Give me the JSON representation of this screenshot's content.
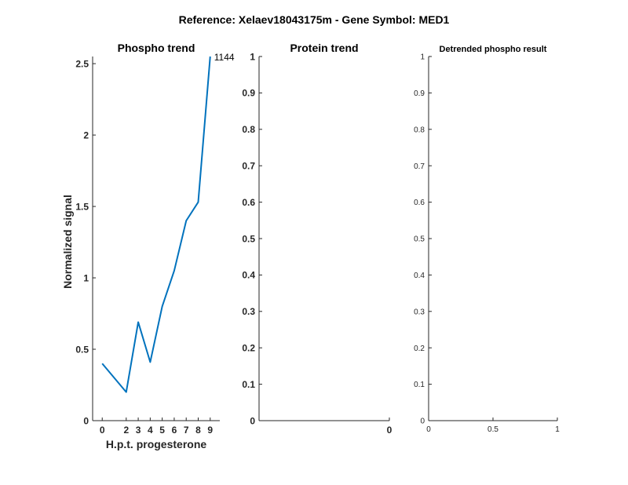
{
  "figure": {
    "title": "Reference:  Xelaev18043175m - Gene Symbol:  MED1"
  },
  "chart_data": [
    {
      "type": "line",
      "title": "Phospho trend",
      "xlabel": "H.p.t. progesterone",
      "ylabel": "Normalized signal",
      "x": [
        0,
        2,
        3,
        4,
        5,
        6,
        7,
        8,
        9
      ],
      "x_tick_labels": [
        "0",
        "2",
        "3",
        "4",
        "5",
        "6",
        "7",
        "8",
        "9"
      ],
      "xlim": [
        -0.8,
        9.8
      ],
      "ylim": [
        0,
        2.55
      ],
      "y_ticks": [
        0,
        0.5,
        1,
        1.5,
        2,
        2.5
      ],
      "y_tick_labels": [
        "0",
        "0.5",
        "1",
        "1.5",
        "2",
        "2.5"
      ],
      "series": [
        {
          "label": "1144",
          "color": "#0072bd",
          "values": [
            0.4,
            0.2,
            0.69,
            0.41,
            0.8,
            1.05,
            1.4,
            1.53,
            2.55
          ]
        }
      ],
      "grid": false
    },
    {
      "type": "line",
      "title": "Protein trend",
      "xlabel": "",
      "ylabel": "",
      "x_ticks": [
        0
      ],
      "x_tick_labels": [
        "0"
      ],
      "xlim": [
        -1,
        0
      ],
      "ylim": [
        0,
        1
      ],
      "y_ticks": [
        0,
        0.1,
        0.2,
        0.3,
        0.4,
        0.5,
        0.6,
        0.7,
        0.8,
        0.9,
        1
      ],
      "y_tick_labels": [
        "0",
        "0.1",
        "0.2",
        "0.3",
        "0.4",
        "0.5",
        "0.6",
        "0.7",
        "0.8",
        "0.9",
        "1"
      ],
      "series": [],
      "grid": false
    },
    {
      "type": "line",
      "title": "Detrended phospho result",
      "xlabel": "",
      "ylabel": "",
      "x_ticks": [
        0,
        0.5,
        1
      ],
      "x_tick_labels": [
        "0",
        "0.5",
        "1"
      ],
      "xlim": [
        0,
        1
      ],
      "ylim": [
        0,
        1
      ],
      "y_ticks": [
        0,
        0.1,
        0.2,
        0.3,
        0.4,
        0.5,
        0.6,
        0.7,
        0.8,
        0.9,
        1
      ],
      "y_tick_labels": [
        "0",
        "0.1",
        "0.2",
        "0.3",
        "0.4",
        "0.5",
        "0.6",
        "0.7",
        "0.8",
        "0.9",
        "1"
      ],
      "series": [],
      "grid": false
    }
  ]
}
